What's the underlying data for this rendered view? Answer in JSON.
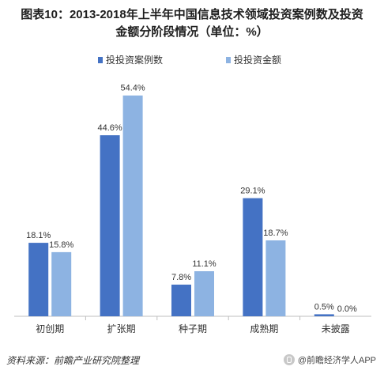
{
  "title_lines": [
    "图表10：2013-2018年上半年中国信息技术领域投资案例数及投资",
    "金额分阶段情况（单位：%）"
  ],
  "source": "资料来源：前瞻产业研究院整理",
  "brand": "@前瞻经济学人APP",
  "colors": {
    "series1": "#4472c4",
    "series2": "#8db3e2",
    "axis": "#bfbfbf",
    "text": "#333333"
  },
  "chart_data": {
    "type": "bar",
    "categories": [
      "初创期",
      "扩张期",
      "种子期",
      "成熟期",
      "未披露"
    ],
    "series": [
      {
        "name": "投投资案例数",
        "values": [
          18.1,
          44.6,
          7.8,
          29.1,
          0.5
        ]
      },
      {
        "name": "投投资金额",
        "values": [
          15.8,
          54.4,
          11.1,
          18.7,
          0.0
        ]
      }
    ],
    "ylim": [
      0,
      60
    ],
    "legend": "top",
    "grid": false,
    "value_suffix": "%"
  }
}
